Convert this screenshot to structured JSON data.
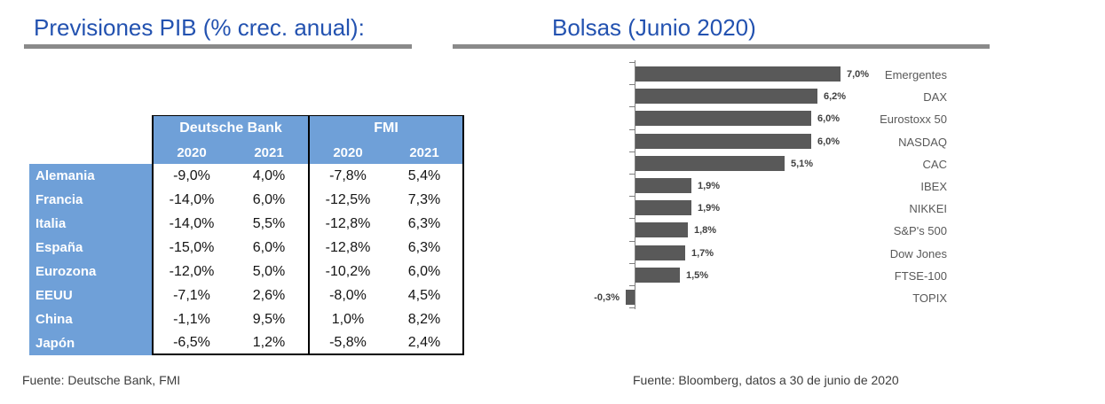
{
  "left_panel": {
    "title": "Previsiones PIB (% crec. anual):",
    "source": "Fuente: Deutsche Bank, FMI"
  },
  "right_panel": {
    "title": "Bolsas (Junio 2020)",
    "source": "Fuente: Bloomberg, datos a 30 de junio de 2020"
  },
  "chart_data": [
    {
      "type": "table",
      "title": "Previsiones PIB (% crec. anual):",
      "column_groups": [
        "Deutsche Bank",
        "FMI"
      ],
      "columns": [
        "2020",
        "2021",
        "2020",
        "2021"
      ],
      "rows": [
        {
          "label": "Alemania",
          "values": [
            "-9,0%",
            "4,0%",
            "-7,8%",
            "5,4%"
          ]
        },
        {
          "label": "Francia",
          "values": [
            "-14,0%",
            "6,0%",
            "-12,5%",
            "7,3%"
          ]
        },
        {
          "label": "Italia",
          "values": [
            "-14,0%",
            "5,5%",
            "-12,8%",
            "6,3%"
          ]
        },
        {
          "label": "España",
          "values": [
            "-15,0%",
            "6,0%",
            "-12,8%",
            "6,3%"
          ]
        },
        {
          "label": "Eurozona",
          "values": [
            "-12,0%",
            "5,0%",
            "-10,2%",
            "6,0%"
          ]
        },
        {
          "label": "EEUU",
          "values": [
            "-7,1%",
            "2,6%",
            "-8,0%",
            "4,5%"
          ]
        },
        {
          "label": "China",
          "values": [
            "-1,1%",
            "9,5%",
            "1,0%",
            "8,2%"
          ]
        },
        {
          "label": "Japón",
          "values": [
            "-6,5%",
            "1,2%",
            "-5,8%",
            "2,4%"
          ]
        }
      ],
      "source": "Fuente: Deutsche Bank, FMI"
    },
    {
      "type": "bar",
      "orientation": "horizontal",
      "title": "Bolsas (Junio 2020)",
      "categories": [
        "Emergentes",
        "DAX",
        "Eurostoxx 50",
        "NASDAQ",
        "CAC",
        "IBEX",
        "NIKKEI",
        "S&P's 500",
        "Dow Jones",
        "FTSE-100",
        "TOPIX"
      ],
      "values": [
        7.0,
        6.2,
        6.0,
        6.0,
        5.1,
        1.9,
        1.9,
        1.8,
        1.7,
        1.5,
        -0.3
      ],
      "data_labels": [
        "7,0%",
        "6,2%",
        "6,0%",
        "6,0%",
        "5,1%",
        "1,9%",
        "1,9%",
        "1,8%",
        "1,7%",
        "1,5%",
        "-0,3%"
      ],
      "xlabel": "",
      "ylabel": "",
      "xlim": [
        -0.5,
        7.5
      ],
      "grid": false,
      "legend": false,
      "bar_color": "#595959",
      "source": "Fuente: Bloomberg, datos a 30 de junio de 2020"
    }
  ],
  "colors": {
    "title_blue": "#2352b0",
    "rule_gray": "#8a8a8a",
    "table_header_blue": "#6fa0d8",
    "bar_gray": "#595959",
    "axis_gray": "#7f7f7f"
  }
}
